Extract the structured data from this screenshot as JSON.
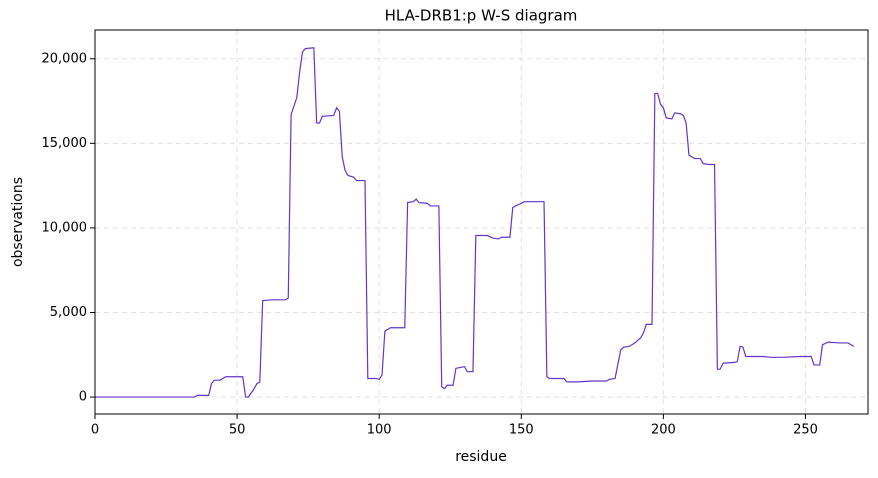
{
  "chart_data": {
    "type": "line",
    "title": "HLA-DRB1:p W-S diagram",
    "x_label": "residue",
    "y_label": "observations",
    "x": [
      0,
      35,
      36,
      40,
      41,
      42,
      44,
      46,
      52,
      53,
      54,
      56,
      57,
      58,
      59,
      62,
      67,
      68,
      69,
      71,
      72,
      73,
      74,
      77,
      78,
      79,
      80,
      84,
      85,
      86,
      87,
      88,
      89,
      91,
      92,
      95,
      96,
      99,
      100,
      101,
      102,
      104,
      109,
      110,
      112,
      113,
      114,
      117,
      118,
      121,
      122,
      123,
      124,
      126,
      127,
      130,
      131,
      133,
      134,
      138,
      140,
      142,
      143,
      146,
      147,
      148,
      150,
      151,
      158,
      159,
      160,
      165,
      166,
      170,
      175,
      180,
      181,
      183,
      185,
      186,
      188,
      190,
      192,
      193,
      194,
      196,
      197,
      198,
      199,
      200,
      201,
      203,
      204,
      206,
      207,
      208,
      209,
      211,
      213,
      214,
      216,
      218,
      219,
      220,
      221,
      225,
      226,
      227,
      228,
      229,
      235,
      238,
      242,
      248,
      252,
      253,
      255,
      256,
      258,
      262,
      265,
      267
    ],
    "values": [
      0,
      0,
      100,
      100,
      800,
      1000,
      1000,
      1200,
      1200,
      0,
      0,
      500,
      800,
      900,
      5700,
      5750,
      5750,
      5850,
      16700,
      17700,
      19200,
      20400,
      20600,
      20650,
      16200,
      16200,
      16600,
      16650,
      17100,
      16900,
      14200,
      13400,
      13100,
      13000,
      12800,
      12800,
      1100,
      1100,
      1050,
      1300,
      3900,
      4100,
      4100,
      11500,
      11550,
      11700,
      11500,
      11450,
      11300,
      11300,
      600,
      500,
      700,
      700,
      1700,
      1800,
      1500,
      1500,
      9550,
      9550,
      9400,
      9350,
      9450,
      9450,
      11200,
      11300,
      11450,
      11550,
      11550,
      1200,
      1100,
      1100,
      900,
      900,
      950,
      950,
      1050,
      1100,
      2800,
      2950,
      3000,
      3200,
      3500,
      3800,
      4300,
      4300,
      17950,
      17950,
      17300,
      17100,
      16500,
      16450,
      16800,
      16750,
      16650,
      16200,
      14300,
      14100,
      14100,
      13800,
      13750,
      13750,
      1650,
      1650,
      2000,
      2050,
      2100,
      3000,
      2950,
      2400,
      2400,
      2350,
      2350,
      2400,
      2400,
      1900,
      1900,
      3100,
      3250,
      3200,
      3200,
      3000
    ],
    "color": "#6633cc",
    "xlim": [
      0,
      272
    ],
    "xticks": [
      0,
      50,
      100,
      150,
      200,
      250
    ],
    "ylim": [
      -1000,
      21700
    ],
    "yticks": [
      0,
      {
        "value": 5000,
        "label": "5,000"
      },
      {
        "value": 10000,
        "label": "10,000"
      },
      {
        "value": 15000,
        "label": "15,000"
      },
      {
        "value": 20000,
        "label": "20,000"
      }
    ],
    "grid": true
  }
}
